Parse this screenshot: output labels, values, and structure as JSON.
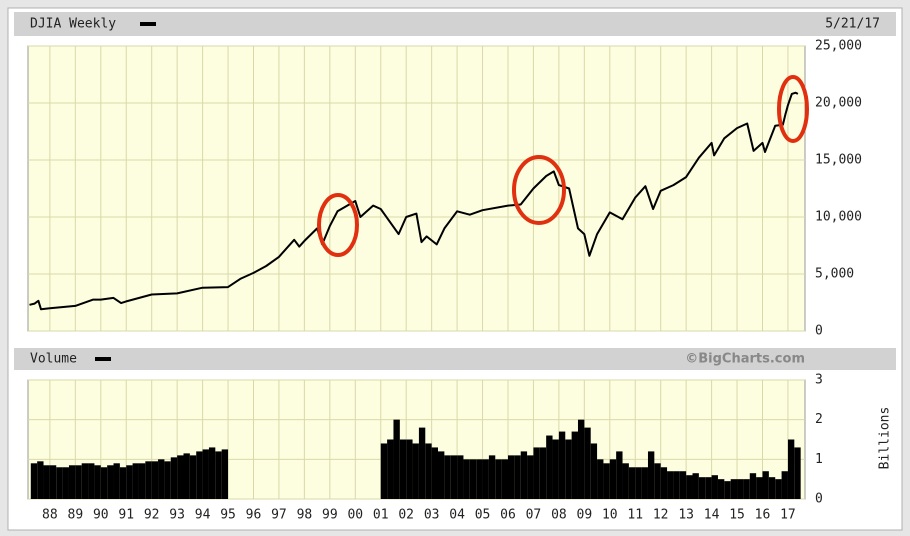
{
  "chart_data": [
    {
      "type": "line",
      "title": "DJIA Weekly",
      "date": "5/21/17",
      "color": "#000000",
      "grid": true,
      "x": [
        1987.2,
        1987.4,
        1987.55,
        1987.65,
        1988,
        1989,
        1989.7,
        1990,
        1990.5,
        1990.8,
        1991,
        1992,
        1993,
        1994,
        1995,
        1995.5,
        1996,
        1996.5,
        1997,
        1997.6,
        1997.8,
        1998,
        1998.5,
        1998.7,
        1999,
        1999.3,
        2000,
        2000.2,
        2000.7,
        2001,
        2001.7,
        2002,
        2002.4,
        2002.6,
        2002.8,
        2003.2,
        2003.5,
        2004,
        2004.5,
        2005,
        2006,
        2006.5,
        2007,
        2007.5,
        2007.8,
        2008,
        2008.4,
        2008.75,
        2009,
        2009.2,
        2009.5,
        2010,
        2010.5,
        2011,
        2011.4,
        2011.7,
        2012,
        2012.5,
        2013,
        2013.5,
        2014,
        2014.1,
        2014.5,
        2015,
        2015.4,
        2015.65,
        2016,
        2016.1,
        2016.5,
        2016.8,
        2016.9,
        2017,
        2017.15,
        2017.3,
        2017.39
      ],
      "values": [
        2300,
        2400,
        2650,
        1900,
        2000,
        2200,
        2750,
        2750,
        2900,
        2450,
        2600,
        3200,
        3300,
        3800,
        3850,
        4600,
        5100,
        5700,
        6500,
        8000,
        7400,
        7900,
        9000,
        7600,
        9200,
        10500,
        11400,
        10000,
        11000,
        10700,
        8500,
        10000,
        10300,
        7800,
        8300,
        7600,
        9000,
        10500,
        10200,
        10600,
        11000,
        11100,
        12500,
        13600,
        14000,
        12800,
        12500,
        9000,
        8500,
        6600,
        8500,
        10400,
        9800,
        11700,
        12700,
        10700,
        12300,
        12800,
        13500,
        15200,
        16500,
        15400,
        16900,
        17800,
        18200,
        15800,
        16500,
        15700,
        18000,
        18100,
        19000,
        19800,
        20800,
        20900,
        20800
      ],
      "xlim": [
        1987.14,
        2017.67
      ],
      "ylim": [
        0,
        25000
      ],
      "yticks": [
        {
          "value": 25000,
          "label": "25,000"
        },
        {
          "value": 20000,
          "label": "20,000"
        },
        {
          "value": 15000,
          "label": "15,000"
        },
        {
          "value": 10000,
          "label": "10,000"
        },
        {
          "value": 5000,
          "label": "5,000"
        },
        0
      ]
    },
    {
      "type": "bar",
      "title": "Volume",
      "source": "©BigCharts.com",
      "ylabel": "Billions",
      "color": "#000000",
      "grid": true,
      "x": [
        1987.25,
        1987.5,
        1987.75,
        1988,
        1988.25,
        1988.5,
        1988.75,
        1989,
        1989.25,
        1989.5,
        1989.75,
        1990,
        1990.25,
        1990.5,
        1990.75,
        1991,
        1991.25,
        1991.5,
        1991.75,
        1992,
        1992.25,
        1992.5,
        1992.75,
        1993,
        1993.25,
        1993.5,
        1993.75,
        1994,
        1994.25,
        1994.5,
        1994.75,
        2001,
        2001.25,
        2001.5,
        2001.75,
        2002,
        2002.25,
        2002.5,
        2002.75,
        2003,
        2003.25,
        2003.5,
        2003.75,
        2004,
        2004.25,
        2004.5,
        2004.75,
        2005,
        2005.25,
        2005.5,
        2005.75,
        2006,
        2006.25,
        2006.5,
        2006.75,
        2007,
        2007.25,
        2007.5,
        2007.75,
        2008,
        2008.25,
        2008.5,
        2008.75,
        2009,
        2009.25,
        2009.5,
        2009.75,
        2010,
        2010.25,
        2010.5,
        2010.75,
        2011,
        2011.25,
        2011.5,
        2011.75,
        2012,
        2012.25,
        2012.5,
        2012.75,
        2013,
        2013.25,
        2013.5,
        2013.75,
        2014,
        2014.25,
        2014.5,
        2014.75,
        2015,
        2015.25,
        2015.5,
        2015.75,
        2016,
        2016.25,
        2016.5,
        2016.75,
        2017,
        2017.25
      ],
      "values": [
        0.9,
        0.95,
        0.85,
        0.85,
        0.8,
        0.8,
        0.85,
        0.85,
        0.9,
        0.9,
        0.85,
        0.8,
        0.85,
        0.9,
        0.8,
        0.85,
        0.9,
        0.9,
        0.95,
        0.95,
        1.0,
        0.95,
        1.05,
        1.1,
        1.15,
        1.1,
        1.2,
        1.25,
        1.3,
        1.2,
        1.25,
        1.4,
        1.5,
        2.0,
        1.5,
        1.5,
        1.4,
        1.8,
        1.4,
        1.3,
        1.2,
        1.1,
        1.1,
        1.1,
        1.0,
        1.0,
        1.0,
        1.0,
        1.1,
        1.0,
        1.0,
        1.1,
        1.1,
        1.2,
        1.1,
        1.3,
        1.3,
        1.6,
        1.5,
        1.7,
        1.5,
        1.7,
        2.0,
        1.8,
        1.4,
        1.0,
        0.9,
        1.0,
        1.2,
        0.9,
        0.8,
        0.8,
        0.8,
        1.2,
        0.9,
        0.8,
        0.7,
        0.7,
        0.7,
        0.6,
        0.65,
        0.55,
        0.55,
        0.6,
        0.5,
        0.45,
        0.5,
        0.5,
        0.5,
        0.65,
        0.55,
        0.7,
        0.55,
        0.5,
        0.7,
        1.5,
        1.3
      ],
      "xlim": [
        1987.14,
        2017.67
      ],
      "ylim": [
        0,
        3
      ],
      "yticks": [
        3,
        2,
        1,
        0
      ],
      "xticks": [
        {
          "value": 1988,
          "label": "88"
        },
        {
          "value": 1989,
          "label": "89"
        },
        {
          "value": 1990,
          "label": "90"
        },
        {
          "value": 1991,
          "label": "91"
        },
        {
          "value": 1992,
          "label": "92"
        },
        {
          "value": 1993,
          "label": "93"
        },
        {
          "value": 1994,
          "label": "94"
        },
        {
          "value": 1995,
          "label": "95"
        },
        {
          "value": 1996,
          "label": "96"
        },
        {
          "value": 1997,
          "label": "97"
        },
        {
          "value": 1998,
          "label": "98"
        },
        {
          "value": 1999,
          "label": "99"
        },
        {
          "value": 2000,
          "label": "00"
        },
        {
          "value": 2001,
          "label": "01"
        },
        {
          "value": 2002,
          "label": "02"
        },
        {
          "value": 2003,
          "label": "03"
        },
        {
          "value": 2004,
          "label": "04"
        },
        {
          "value": 2005,
          "label": "05"
        },
        {
          "value": 2006,
          "label": "06"
        },
        {
          "value": 2007,
          "label": "07"
        },
        {
          "value": 2008,
          "label": "08"
        },
        {
          "value": 2009,
          "label": "09"
        },
        {
          "value": 2010,
          "label": "10"
        },
        {
          "value": 2011,
          "label": "11"
        },
        {
          "value": 2012,
          "label": "12"
        },
        {
          "value": 2013,
          "label": "13"
        },
        {
          "value": 2014,
          "label": "14"
        },
        {
          "value": 2015,
          "label": "15"
        },
        {
          "value": 2016,
          "label": "16"
        },
        {
          "value": 2017,
          "label": "17"
        }
      ]
    }
  ]
}
